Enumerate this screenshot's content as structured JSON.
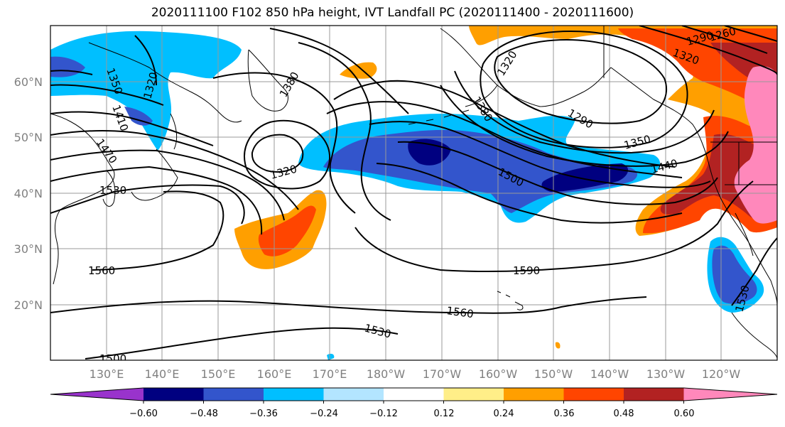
{
  "title": "2020111100 F102 850 hPa height, IVT Landfall PC (2020111400 - 2020111600)",
  "axes": {
    "lat_ticks": [
      "60°N",
      "50°N",
      "40°N",
      "30°N",
      "20°N"
    ],
    "lon_ticks": [
      "130°E",
      "140°E",
      "150°E",
      "160°E",
      "170°E",
      "180°W",
      "170°W",
      "160°W",
      "150°W",
      "140°W",
      "130°W",
      "120°W"
    ]
  },
  "colorbar": {
    "ticks": [
      "−0.60",
      "−0.48",
      "−0.36",
      "−0.24",
      "−0.12",
      "0.12",
      "0.24",
      "0.36",
      "0.48",
      "0.60"
    ],
    "colors": [
      "#9933cc",
      "#000080",
      "#3355cc",
      "#00bfff",
      "#b3e5ff",
      "#ffffff",
      "#ffee88",
      "#ff9f00",
      "#ff4500",
      "#b22222",
      "#ff88bb"
    ]
  },
  "contour_labels": [
    {
      "text": "1350"
    },
    {
      "text": "1320"
    },
    {
      "text": "1380"
    },
    {
      "text": "1410"
    },
    {
      "text": "1470"
    },
    {
      "text": "1530"
    },
    {
      "text": "1320"
    },
    {
      "text": "1560"
    },
    {
      "text": "1500"
    },
    {
      "text": "1530"
    },
    {
      "text": "1560"
    },
    {
      "text": "1590"
    },
    {
      "text": "1500"
    },
    {
      "text": "1380"
    },
    {
      "text": "1320"
    },
    {
      "text": "1290"
    },
    {
      "text": "1350"
    },
    {
      "text": "1440"
    },
    {
      "text": "1320"
    },
    {
      "text": "1290"
    },
    {
      "text": "1260"
    },
    {
      "text": "1530"
    }
  ]
}
